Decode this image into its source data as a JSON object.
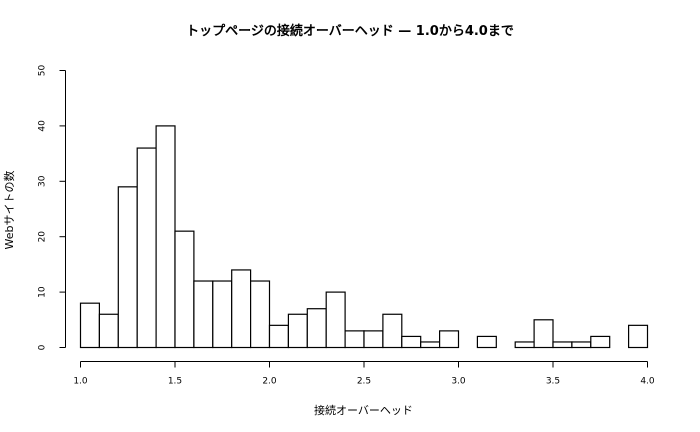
{
  "chart_data": {
    "type": "bar",
    "subtype": "histogram",
    "title": "トップページの接続オーバーヘッド — 1.0から4.0まで",
    "xlabel": "接続オーバーヘッド",
    "ylabel": "Webサイトの数",
    "xlim": [
      1.0,
      4.0
    ],
    "ylim": [
      0,
      50
    ],
    "bin_width": 0.1,
    "x_ticks": [
      "1.0",
      "1.5",
      "2.0",
      "2.5",
      "3.0",
      "3.5",
      "4.0"
    ],
    "y_ticks": [
      "0",
      "10",
      "20",
      "30",
      "40",
      "50"
    ],
    "bin_edges": [
      1.0,
      1.1,
      1.2,
      1.3,
      1.4,
      1.5,
      1.6,
      1.7,
      1.8,
      1.9,
      2.0,
      2.1,
      2.2,
      2.3,
      2.4,
      2.5,
      2.6,
      2.7,
      2.8,
      2.9,
      3.0,
      3.1,
      3.2,
      3.3,
      3.4,
      3.5,
      3.6,
      3.7,
      3.8,
      3.9,
      4.0
    ],
    "values": [
      8,
      6,
      29,
      36,
      40,
      21,
      12,
      12,
      14,
      12,
      4,
      6,
      7,
      10,
      3,
      3,
      6,
      2,
      1,
      3,
      0,
      2,
      0,
      1,
      5,
      1,
      1,
      2,
      0,
      4
    ],
    "grid": false,
    "legend": null,
    "bar_fill": "#ffffff",
    "bar_stroke": "#000000"
  }
}
